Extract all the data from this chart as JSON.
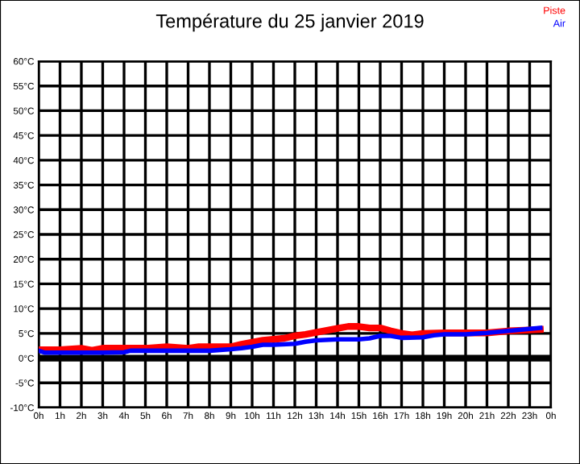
{
  "chart_data": {
    "type": "line",
    "title": "Température du 25 janvier 2019",
    "xlim": [
      "2019-01-25T00:00",
      "2019-01-26T00:00"
    ],
    "xticks": [
      {
        "value": "2019-01-25T00:00",
        "label": "0h"
      },
      {
        "value": "2019-01-25T01:00",
        "label": "1h"
      },
      {
        "value": "2019-01-25T02:00",
        "label": "2h"
      },
      {
        "value": "2019-01-25T03:00",
        "label": "3h"
      },
      {
        "value": "2019-01-25T04:00",
        "label": "4h"
      },
      {
        "value": "2019-01-25T05:00",
        "label": "5h"
      },
      {
        "value": "2019-01-25T06:00",
        "label": "6h"
      },
      {
        "value": "2019-01-25T07:00",
        "label": "7h"
      },
      {
        "value": "2019-01-25T08:00",
        "label": "8h"
      },
      {
        "value": "2019-01-25T09:00",
        "label": "9h"
      },
      {
        "value": "2019-01-25T10:00",
        "label": "10h"
      },
      {
        "value": "2019-01-25T11:00",
        "label": "11h"
      },
      {
        "value": "2019-01-25T12:00",
        "label": "12h"
      },
      {
        "value": "2019-01-25T13:00",
        "label": "13h"
      },
      {
        "value": "2019-01-25T14:00",
        "label": "14h"
      },
      {
        "value": "2019-01-25T15:00",
        "label": "15h"
      },
      {
        "value": "2019-01-25T16:00",
        "label": "16h"
      },
      {
        "value": "2019-01-25T17:00",
        "label": "17h"
      },
      {
        "value": "2019-01-25T18:00",
        "label": "18h"
      },
      {
        "value": "2019-01-25T19:00",
        "label": "19h"
      },
      {
        "value": "2019-01-25T20:00",
        "label": "20h"
      },
      {
        "value": "2019-01-25T21:00",
        "label": "21h"
      },
      {
        "value": "2019-01-25T22:00",
        "label": "22h"
      },
      {
        "value": "2019-01-25T23:00",
        "label": "23h"
      },
      {
        "value": "2019-01-26T00:00",
        "label": "0h"
      }
    ],
    "ylim": [
      -10,
      60
    ],
    "yticks": [
      {
        "value": -10,
        "label": "-10°C"
      },
      {
        "value": -5,
        "label": "-5°C"
      },
      {
        "value": 0,
        "label": "0°C"
      },
      {
        "value": 5,
        "label": "5°C"
      },
      {
        "value": 10,
        "label": "10°C"
      },
      {
        "value": 15,
        "label": "15°C"
      },
      {
        "value": 20,
        "label": "20°C"
      },
      {
        "value": 25,
        "label": "25°C"
      },
      {
        "value": 30,
        "label": "30°C"
      },
      {
        "value": 35,
        "label": "35°C"
      },
      {
        "value": 40,
        "label": "40°C"
      },
      {
        "value": 45,
        "label": "45°C"
      },
      {
        "value": 50,
        "label": "50°C"
      },
      {
        "value": 55,
        "label": "55°C"
      },
      {
        "value": 60,
        "label": "60°C"
      }
    ],
    "grid": true,
    "legend": "top right",
    "marker": "none",
    "line_style": "solid",
    "ref_lines": [
      {
        "axis": "y",
        "value": 0,
        "color": "#000000"
      }
    ],
    "series": [
      {
        "name": "Piste",
        "color": "#ff0000",
        "x": [
          "2019-01-25T00:00",
          "2019-01-25T01:00",
          "2019-01-25T02:00",
          "2019-01-25T02:30",
          "2019-01-25T03:00",
          "2019-01-25T04:00",
          "2019-01-25T05:00",
          "2019-01-25T06:00",
          "2019-01-25T07:00",
          "2019-01-25T07:30",
          "2019-01-25T08:00",
          "2019-01-25T09:00",
          "2019-01-25T09:30",
          "2019-01-25T10:00",
          "2019-01-25T10:30",
          "2019-01-25T11:00",
          "2019-01-25T11:30",
          "2019-01-25T12:00",
          "2019-01-25T12:30",
          "2019-01-25T13:00",
          "2019-01-25T13:30",
          "2019-01-25T14:00",
          "2019-01-25T14:30",
          "2019-01-25T15:00",
          "2019-01-25T15:30",
          "2019-01-25T16:00",
          "2019-01-25T16:30",
          "2019-01-25T17:00",
          "2019-01-25T17:30",
          "2019-01-25T18:00",
          "2019-01-25T19:00",
          "2019-01-25T20:00",
          "2019-01-25T21:00",
          "2019-01-25T22:00",
          "2019-01-25T23:00",
          "2019-01-25T23:30"
        ],
        "values": [
          1.7,
          1.7,
          2.0,
          1.6,
          2.0,
          2.0,
          2.0,
          2.3,
          2.0,
          2.3,
          2.3,
          2.3,
          2.8,
          3.2,
          3.6,
          3.8,
          4.0,
          4.5,
          4.8,
          5.2,
          5.6,
          6.0,
          6.4,
          6.4,
          6.1,
          6.1,
          5.5,
          5.0,
          4.7,
          5.0,
          5.1,
          5.1,
          5.1,
          5.5,
          5.7,
          5.8
        ]
      },
      {
        "name": "Air",
        "color": "#0000ff",
        "x": [
          "2019-01-25T00:00",
          "2019-01-25T00:18",
          "2019-01-25T01:00",
          "2019-01-25T02:00",
          "2019-01-25T03:00",
          "2019-01-25T04:00",
          "2019-01-25T04:18",
          "2019-01-25T05:00",
          "2019-01-25T06:00",
          "2019-01-25T07:00",
          "2019-01-25T08:00",
          "2019-01-25T09:00",
          "2019-01-25T09:30",
          "2019-01-25T10:00",
          "2019-01-25T10:30",
          "2019-01-25T11:00",
          "2019-01-25T12:00",
          "2019-01-25T12:30",
          "2019-01-25T13:00",
          "2019-01-25T14:00",
          "2019-01-25T15:00",
          "2019-01-25T15:30",
          "2019-01-25T16:00",
          "2019-01-25T16:30",
          "2019-01-25T17:00",
          "2019-01-25T18:00",
          "2019-01-25T18:30",
          "2019-01-25T19:00",
          "2019-01-25T20:00",
          "2019-01-25T21:00",
          "2019-01-25T22:00",
          "2019-01-25T23:00",
          "2019-01-25T23:30"
        ],
        "values": [
          1.5,
          1.1,
          1.1,
          1.1,
          1.1,
          1.2,
          1.5,
          1.5,
          1.5,
          1.5,
          1.5,
          1.8,
          2.0,
          2.3,
          2.7,
          2.7,
          2.9,
          3.3,
          3.6,
          3.8,
          3.8,
          4.0,
          4.5,
          4.5,
          4.1,
          4.2,
          4.6,
          4.8,
          4.8,
          5.1,
          5.5,
          5.9,
          6.1
        ]
      }
    ]
  }
}
